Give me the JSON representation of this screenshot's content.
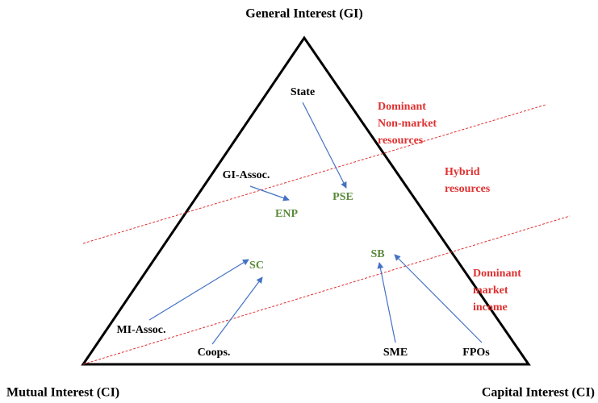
{
  "corners": {
    "top": "General Interest (GI)",
    "left": "Mutual Interest (CI)",
    "right": "Capital Interest (CI)"
  },
  "nodes": [
    {
      "label": "State"
    },
    {
      "label": "PSE"
    },
    {
      "label": "GI-Assoc."
    },
    {
      "label": "ENP"
    },
    {
      "label": "SC"
    },
    {
      "label": "SB"
    },
    {
      "label": "MI-Assoc."
    },
    {
      "label": "Coops."
    },
    {
      "label": "SME"
    },
    {
      "label": "FPOs"
    }
  ],
  "zones": [
    {
      "lines": [
        "Dominant",
        "Non-market",
        "resources"
      ]
    },
    {
      "lines": [
        "Hybrid",
        "resources"
      ]
    },
    {
      "lines": [
        "Dominant",
        "market",
        "income"
      ]
    }
  ]
}
